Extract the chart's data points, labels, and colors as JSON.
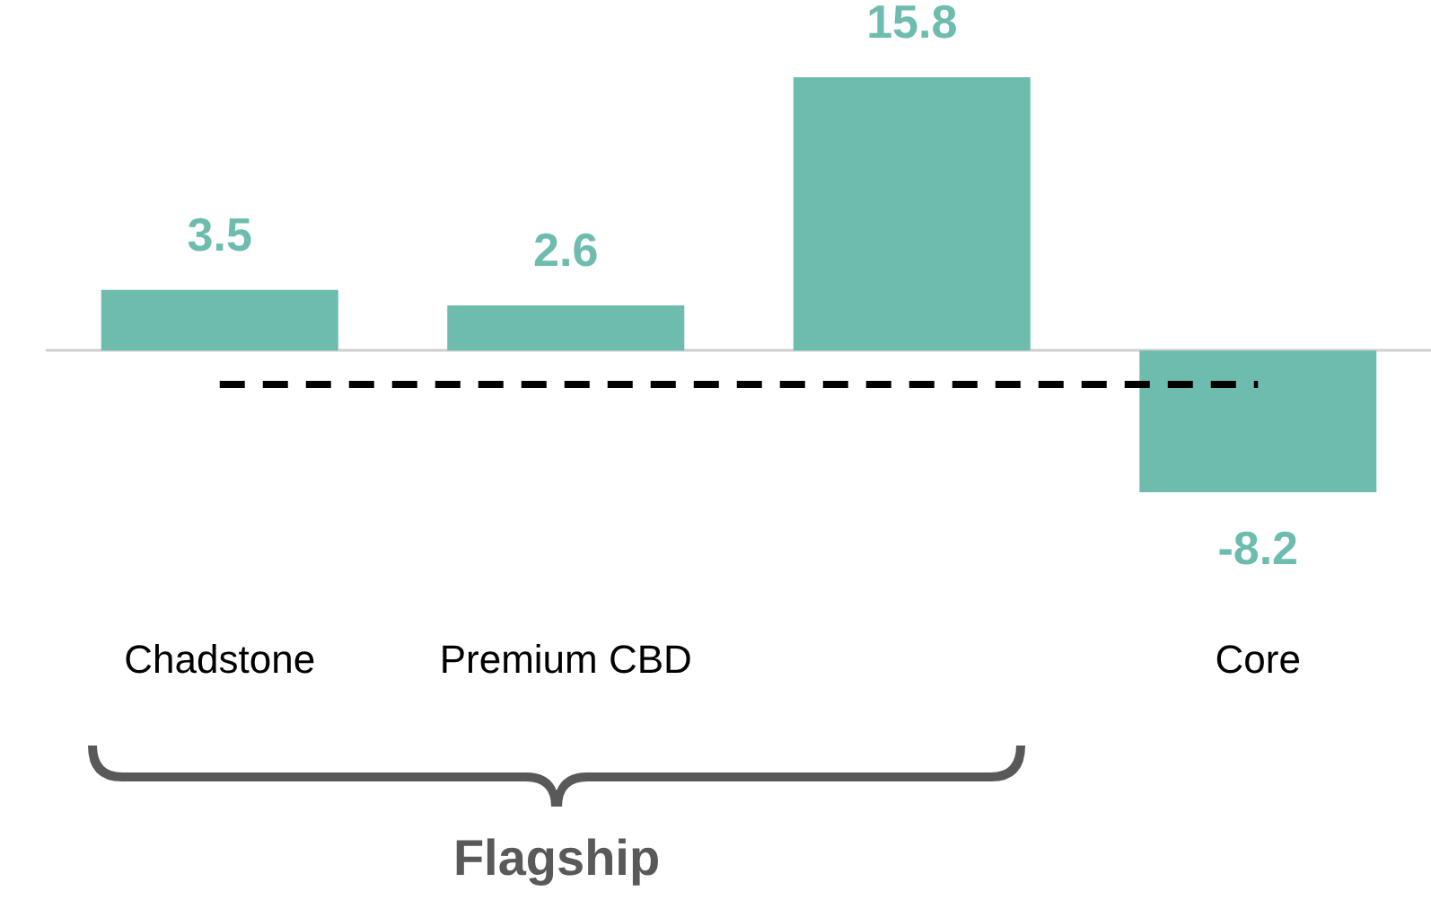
{
  "chart_data": {
    "type": "bar",
    "categories": [
      "Chadstone",
      "Premium CBD",
      null,
      "Core"
    ],
    "values": [
      3.5,
      2.6,
      15.8,
      -8.2
    ],
    "color": "#6dbcae",
    "data_labels": true,
    "ref_lines": [
      {
        "axis": "y",
        "value": -1.9,
        "color": "#000000",
        "line_style": "dashed"
      }
    ],
    "annotations": [
      "Flagship"
    ]
  }
}
